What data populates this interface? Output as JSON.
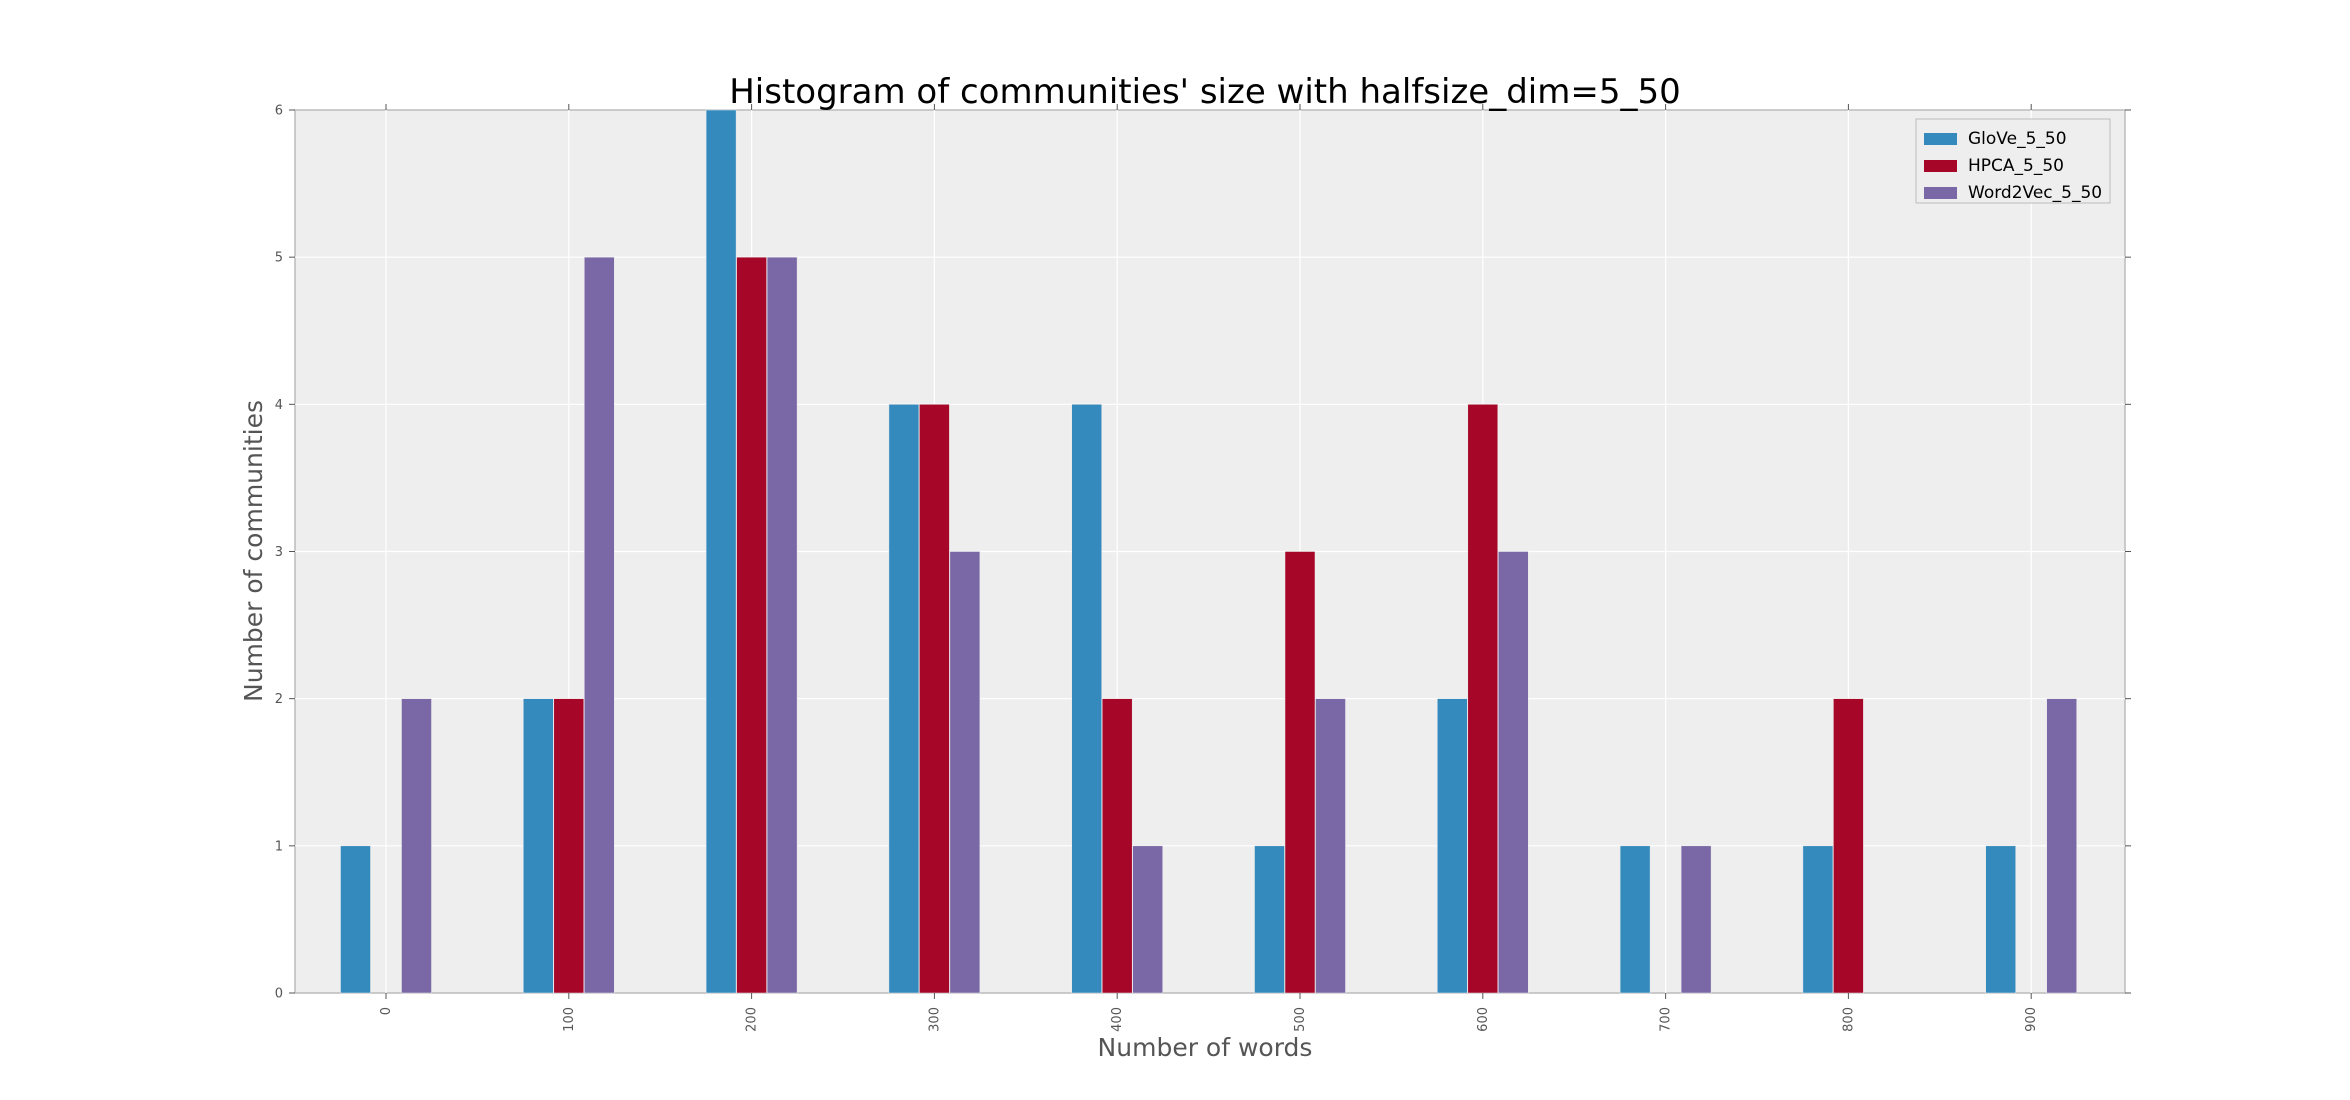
{
  "chart_data": {
    "type": "bar",
    "title": "Histogram of communities' size with halfsize_dim=5_50",
    "xlabel": "Number of words",
    "ylabel": "Number of communities",
    "categories": [
      "0",
      "100",
      "200",
      "300",
      "400",
      "500",
      "600",
      "700",
      "800",
      "900"
    ],
    "series": [
      {
        "name": "GloVe_5_50",
        "color": "#348abd",
        "values": [
          1,
          2,
          6,
          4,
          4,
          1,
          2,
          1,
          1,
          1
        ]
      },
      {
        "name": "HPCA_5_50",
        "color": "#a60628",
        "values": [
          0,
          2,
          5,
          4,
          2,
          3,
          4,
          0,
          2,
          0
        ]
      },
      {
        "name": "Word2Vec_5_50",
        "color": "#7a68a6",
        "values": [
          2,
          5,
          5,
          3,
          1,
          2,
          3,
          1,
          0,
          2
        ]
      }
    ],
    "ylim": [
      0,
      6
    ],
    "yticks": [
      "0",
      "1",
      "2",
      "3",
      "4",
      "5",
      "6"
    ],
    "grid": true,
    "legend": "top-right",
    "background": "#eeeeee"
  }
}
